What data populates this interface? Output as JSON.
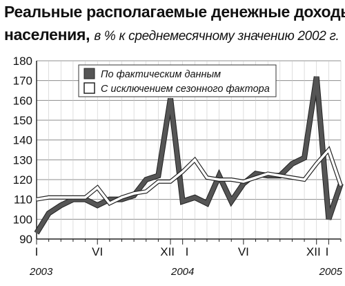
{
  "chart_data": {
    "type": "line",
    "title": "Реальные располагаемые денежные доходы",
    "title_line2": "населения,",
    "subtitle": "в % к среднемесячному значению 2002 г.",
    "ylim": [
      90,
      180
    ],
    "yticks": [
      90,
      100,
      110,
      120,
      130,
      140,
      150,
      160,
      170,
      180
    ],
    "x_tick_labels": [
      {
        "index": 0,
        "label": "I"
      },
      {
        "index": 5,
        "label": "VI"
      },
      {
        "index": 11,
        "label": "XII"
      },
      {
        "index": 12,
        "label": "I"
      },
      {
        "index": 17,
        "label": "VI"
      },
      {
        "index": 23,
        "label": "XII"
      },
      {
        "index": 24,
        "label": "I"
      }
    ],
    "year_labels": [
      {
        "index": 0,
        "label": "2003"
      },
      {
        "index": 12,
        "label": "2004"
      },
      {
        "index": 24,
        "label": "2005"
      }
    ],
    "grid": true,
    "legend_position": "top",
    "series": [
      {
        "name": "По фактическим данным",
        "color": "#555555",
        "style": "thick-gray",
        "values": [
          93,
          103,
          107,
          110,
          110,
          107,
          110,
          110,
          112,
          120,
          122,
          161,
          109,
          111,
          108,
          122,
          109,
          118,
          123,
          122,
          122,
          128,
          131,
          172,
          100,
          118
        ]
      },
      {
        "name": "С исключением сезонного фактора",
        "color": "#ffffff",
        "style": "white-outlined",
        "values": [
          110,
          111,
          111,
          111,
          111,
          116,
          108,
          111,
          113,
          114,
          119,
          119,
          124,
          130,
          121,
          120,
          120,
          119,
          121,
          123,
          122,
          121,
          120,
          128,
          135,
          117
        ]
      }
    ]
  }
}
